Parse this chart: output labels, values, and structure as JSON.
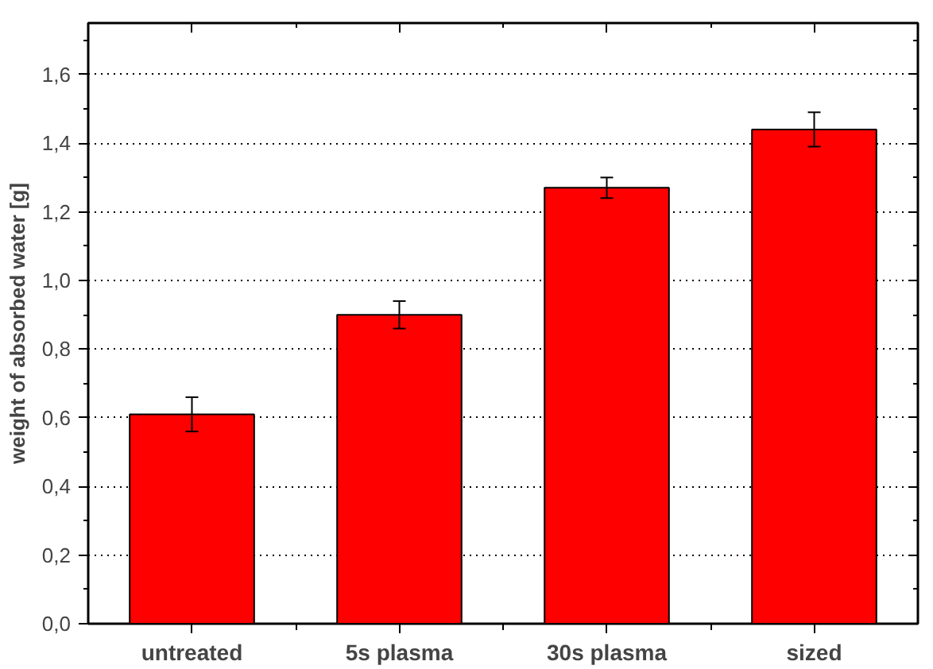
{
  "chart_data": {
    "type": "bar",
    "ylabel": "weight of absorbed water [g]",
    "categories": [
      "untreated",
      "5s plasma",
      "30s plasma",
      "sized"
    ],
    "values": [
      0.61,
      0.9,
      1.27,
      1.44
    ],
    "errors": [
      0.05,
      0.04,
      0.03,
      0.05
    ],
    "color": "#ff0000",
    "ylim": [
      0,
      1.75
    ],
    "yticks": [
      {
        "value": 0,
        "label": "0,0"
      },
      {
        "value": 0.2,
        "label": "0,2"
      },
      {
        "value": 0.4,
        "label": "0,4"
      },
      {
        "value": 0.6,
        "label": "0,6"
      },
      {
        "value": 0.8,
        "label": "0,8"
      },
      {
        "value": 1.0,
        "label": "1,0"
      },
      {
        "value": 1.2,
        "label": "1,2"
      },
      {
        "value": 1.4,
        "label": "1,4"
      },
      {
        "value": 1.6,
        "label": "1,6"
      }
    ],
    "grid": "y"
  }
}
